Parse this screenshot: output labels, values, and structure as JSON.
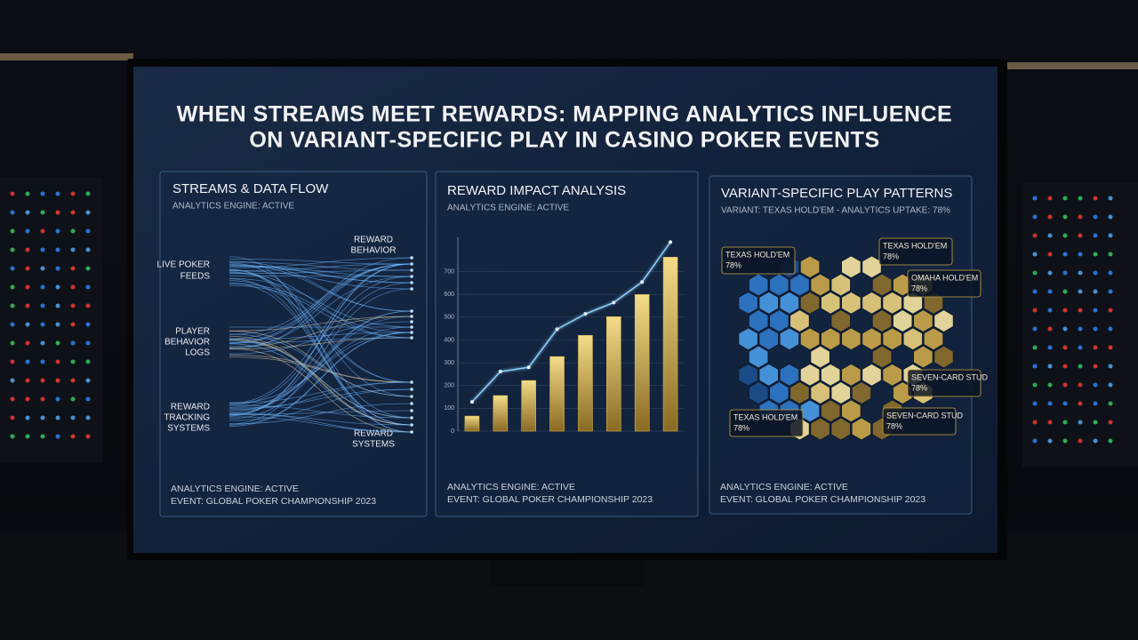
{
  "header": {
    "title_lines": [
      "WHEN STREAMS MEET REWARDS: MAPPING ANALYTICS INFLUENCE",
      "ON VARIANT-SPECIFIC PLAY IN CASINO POKER EVENTS"
    ]
  },
  "panels": [
    {
      "title": "STREAMS & DATA FLOW",
      "subtitle": "ANALYTICS ENGINE: ACTIVE",
      "sources": [
        [
          "LIVE POKER",
          "FEEDS"
        ],
        [
          "PLAYER",
          "BEHAVIOR",
          "LOGS"
        ],
        [
          "REWARD",
          "TRACKING",
          "SYSTEMS"
        ]
      ],
      "targets": [
        [
          "REWARD",
          "BEHAVIOR"
        ],
        [
          "REWARD",
          "SYSTEMS"
        ]
      ],
      "footer": [
        "ANALYTICS ENGINE: ACTIVE",
        "EVENT: GLOBAL POKER CHAMPIONSHIP 2023"
      ]
    },
    {
      "title": "REWARD IMPACT ANALYSIS",
      "subtitle": "ANALYTICS ENGINE: ACTIVE",
      "chart_data": {
        "type": "bar",
        "categories": [
          null,
          null,
          null,
          null,
          null,
          null,
          null,
          null
        ],
        "series": [
          {
            "type": "bar",
            "color": "#d9b54a",
            "values": [
              66,
              156,
              222,
              327,
              420,
              502,
              599,
              763
            ]
          },
          {
            "type": "line",
            "color": "#8fd4ff",
            "values": [
              128,
              261,
              280,
              447,
              514,
              564,
              654,
              829
            ]
          }
        ],
        "ylim": [
          0,
          850
        ],
        "yticks": [
          0,
          100,
          200,
          300,
          400,
          500,
          600,
          700
        ],
        "grid": true
      },
      "footer": [
        "ANALYTICS ENGINE: ACTIVE",
        "EVENT: GLOBAL POKER CHAMPIONSHIP 2023"
      ]
    },
    {
      "title": "VARIANT-SPECIFIC PLAY PATTERNS",
      "subtitle": "VARIANT: TEXAS HOLD'EM - ANALYTICS UPTAKE: 78%",
      "callouts": [
        {
          "name": "TEXAS HOLD'EM",
          "value": "78%"
        },
        {
          "name": "TEXAS HOLD'EM",
          "value": "78%"
        },
        {
          "name": "OMAHA HOLD'EM",
          "value": "78%"
        },
        {
          "name": "SEVEN-CARD STUD",
          "value": "78%"
        },
        {
          "name": "SEVEN-CARD STUD",
          "value": "78%"
        },
        {
          "name": "TEXAS HOLD'EM",
          "value": "78%"
        }
      ],
      "footer": [
        "ANALYTICS ENGINE: ACTIVE",
        "EVENT: GLOBAL POKER CHAMPIONSHIP 2023"
      ]
    }
  ]
}
